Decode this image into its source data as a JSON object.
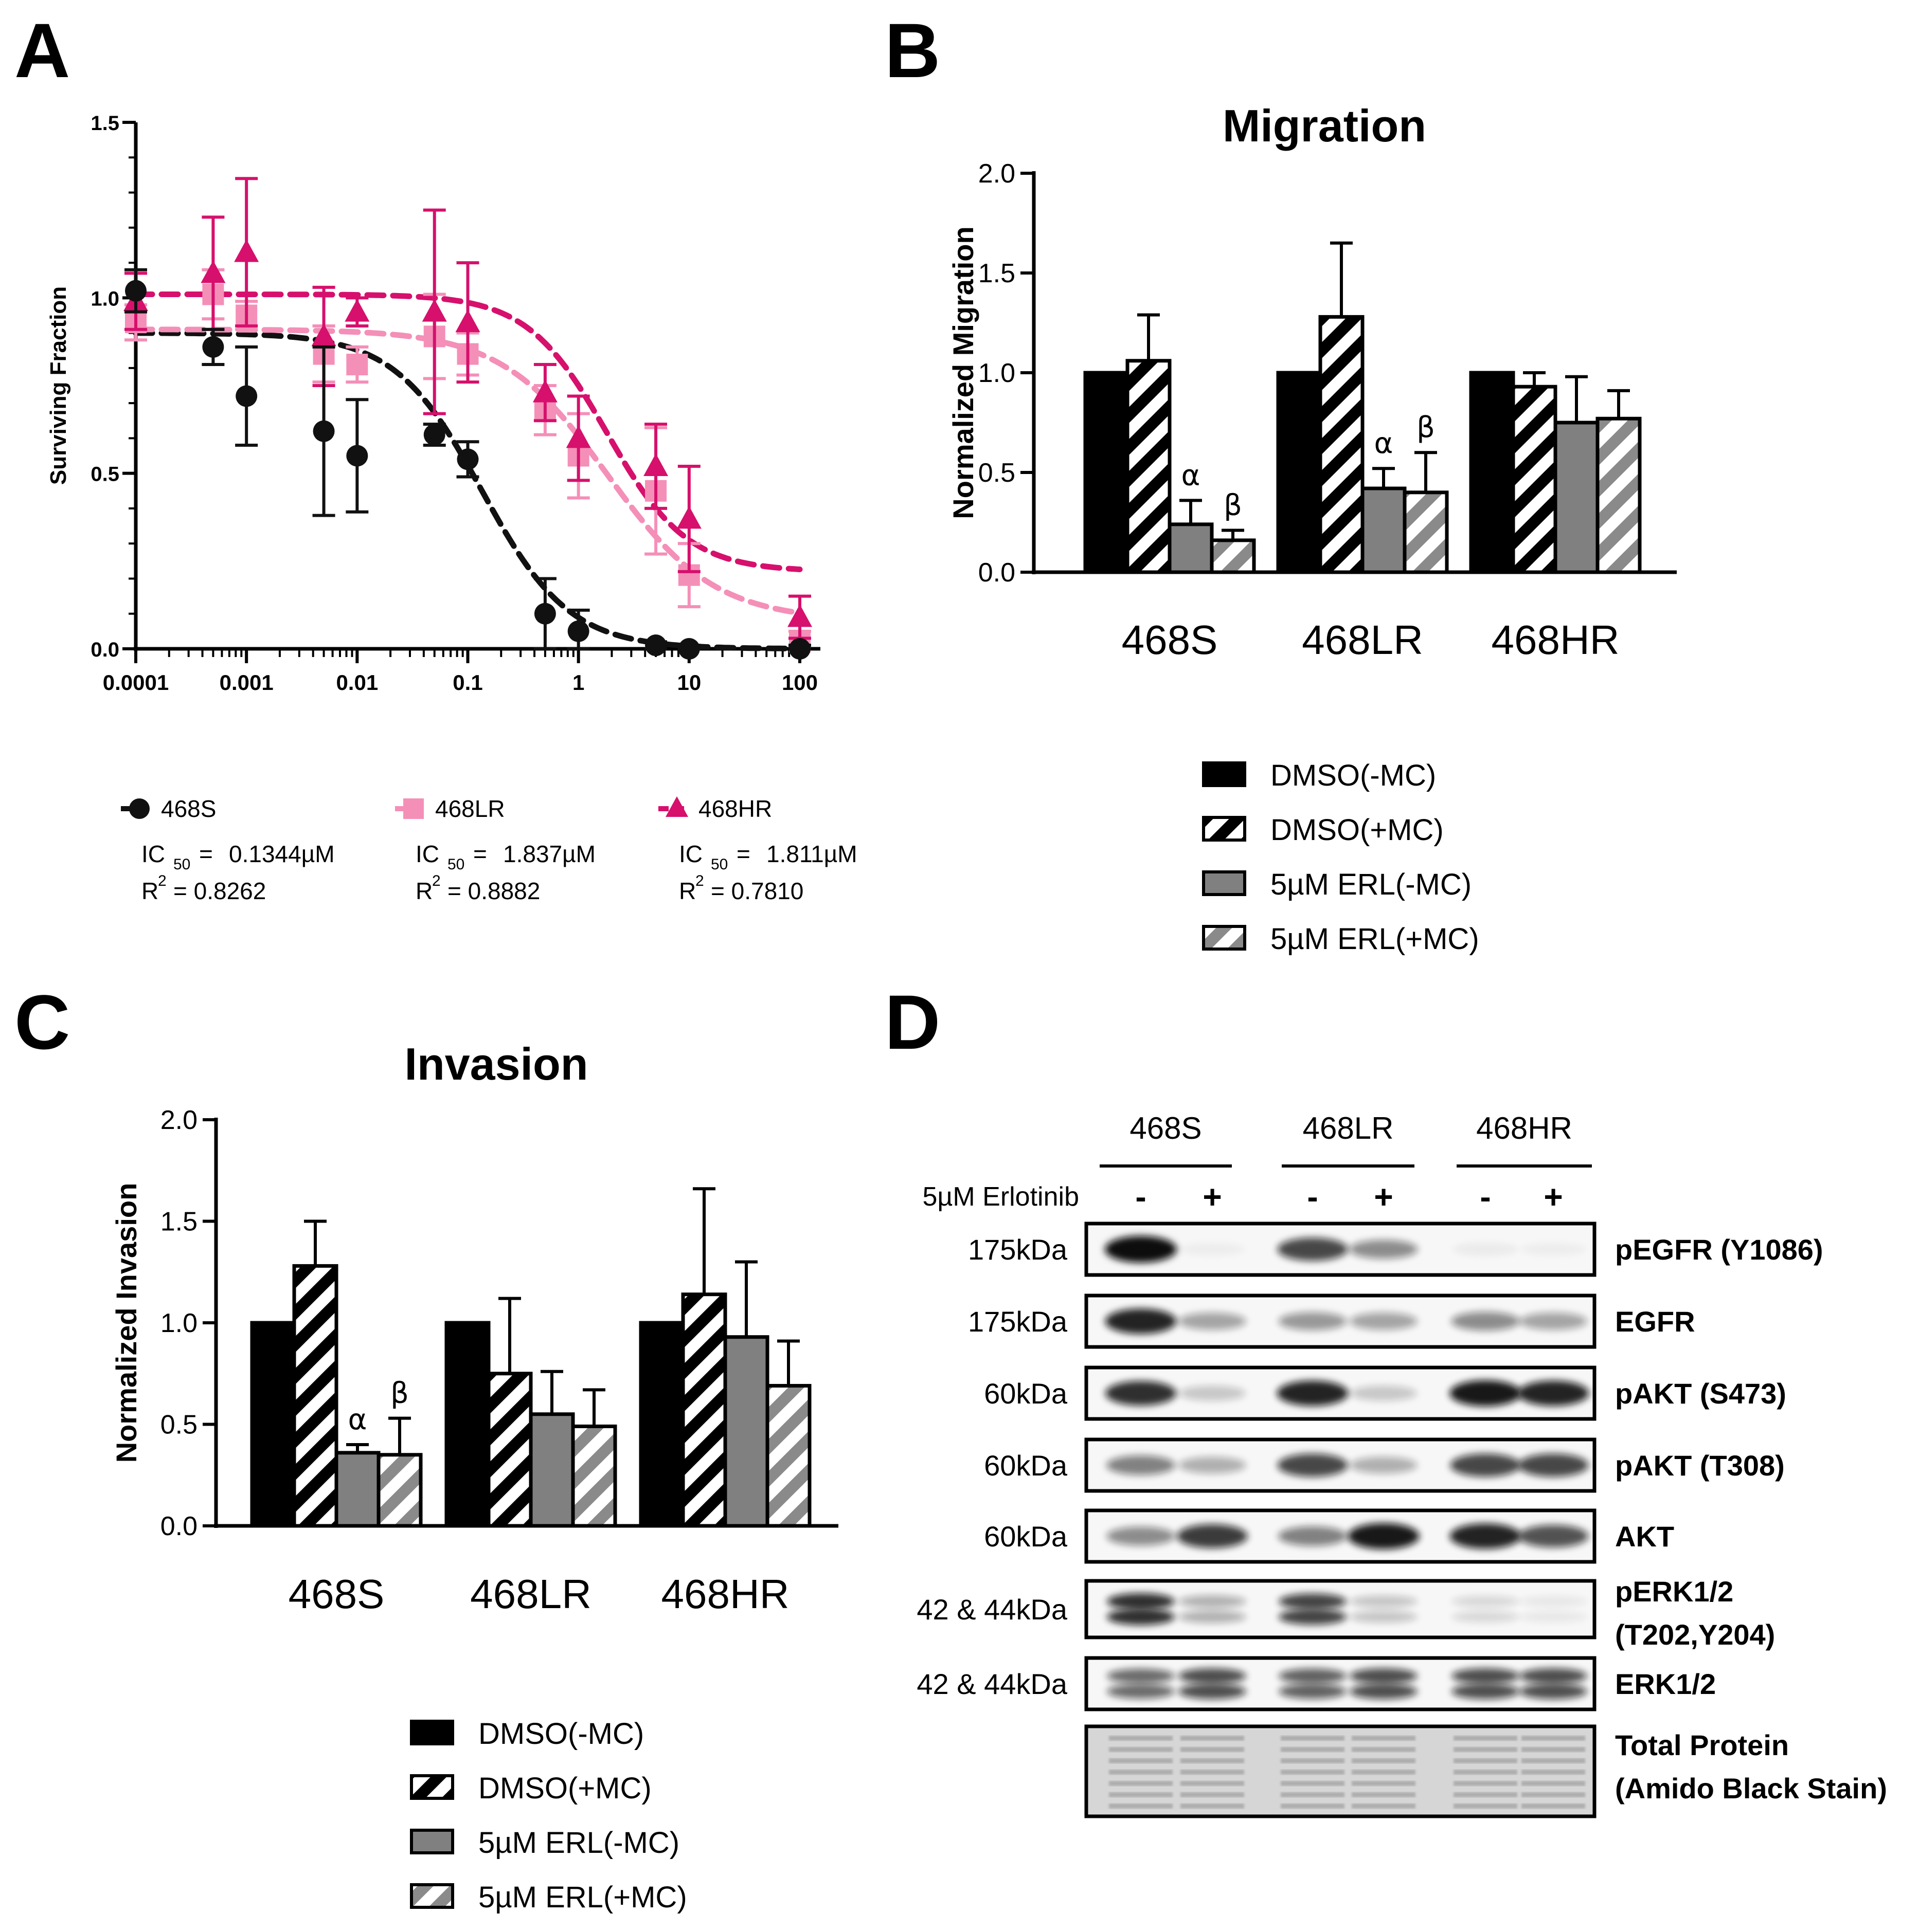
{
  "panels": {
    "A": "A",
    "B": "B",
    "C": "C",
    "D": "D"
  },
  "chart_data": [
    {
      "id": "A",
      "type": "scatter",
      "title": "",
      "xlabel": "",
      "ylabel": "Surviving Fraction",
      "xscale": "log",
      "xlim": [
        0.0001,
        100
      ],
      "ylim": [
        0,
        1.5
      ],
      "xticks": [
        "0.0001",
        "0.001",
        "0.01",
        "0.1",
        "1",
        "10",
        "100"
      ],
      "yticks": [
        "0.0",
        "0.5",
        "1.0",
        "1.5"
      ],
      "x": [
        0.0001,
        0.0005,
        0.001,
        0.005,
        0.01,
        0.05,
        0.1,
        0.5,
        1,
        5,
        10,
        100
      ],
      "series": [
        {
          "name": "468S",
          "color": "#111111",
          "marker": "circle",
          "values": [
            1.02,
            0.86,
            0.72,
            0.62,
            0.55,
            0.61,
            0.54,
            0.1,
            0.05,
            0.01,
            0.0,
            0.0
          ],
          "err": [
            0.06,
            0.05,
            0.14,
            0.24,
            0.16,
            0.03,
            0.05,
            0.1,
            0.06,
            0.01,
            0.01,
            0.01
          ],
          "fit": {
            "top": 0.9,
            "bottom": 0.0,
            "ic50": 0.1344,
            "hill": 1.1
          },
          "ic50_label": "0.1344µM",
          "r2_label": "= 0.8262"
        },
        {
          "name": "468LR",
          "color": "#F48FB8",
          "marker": "square",
          "values": [
            0.93,
            1.01,
            0.95,
            0.84,
            0.81,
            0.89,
            0.84,
            0.68,
            0.55,
            0.45,
            0.21,
            0.02
          ],
          "err": [
            0.05,
            0.07,
            0.04,
            0.08,
            0.05,
            0.12,
            0.06,
            0.07,
            0.12,
            0.18,
            0.09,
            0.03
          ],
          "fit": {
            "top": 0.91,
            "bottom": 0.08,
            "ic50": 1.837,
            "hill": 0.9
          },
          "ic50_label": "1.837µM",
          "r2_label": "= 0.8882"
        },
        {
          "name": "468HR",
          "color": "#D6106C",
          "marker": "triangle",
          "values": [
            0.99,
            1.07,
            1.13,
            0.89,
            0.96,
            0.96,
            0.93,
            0.73,
            0.6,
            0.52,
            0.37,
            0.09
          ],
          "err": [
            0.08,
            0.16,
            0.21,
            0.14,
            0.04,
            0.29,
            0.17,
            0.08,
            0.12,
            0.12,
            0.15,
            0.06
          ],
          "fit": {
            "top": 1.01,
            "bottom": 0.22,
            "ic50": 1.811,
            "hill": 1.2
          },
          "ic50_label": "1.811µM",
          "r2_label": "= 0.7810"
        }
      ],
      "ic50_prefix": "IC",
      "ic50_sub": "50",
      "ic50_eq": "=",
      "r2_prefix": "R",
      "r2_sup": "2"
    },
    {
      "id": "B",
      "type": "bar",
      "title": "Migration",
      "xlabel": "",
      "ylabel": "Normalized Migration",
      "ylim": [
        0,
        2.0
      ],
      "yticks": [
        "0.0",
        "0.5",
        "1.0",
        "1.5",
        "2.0"
      ],
      "categories": [
        "468S",
        "468LR",
        "468HR"
      ],
      "series": [
        {
          "name": "DMSO(-MC)",
          "fill": "black",
          "values": [
            1.0,
            1.0,
            1.0
          ],
          "err": [
            0,
            0,
            0
          ]
        },
        {
          "name": "DMSO(+MC)",
          "fill": "black-stripe",
          "values": [
            1.06,
            1.28,
            0.93
          ],
          "err": [
            0.23,
            0.37,
            0.07
          ]
        },
        {
          "name": "5µM ERL(-MC)",
          "fill": "gray",
          "values": [
            0.24,
            0.42,
            0.75
          ],
          "err": [
            0.12,
            0.1,
            0.23
          ]
        },
        {
          "name": "5µM ERL(+MC)",
          "fill": "gray-stripe",
          "values": [
            0.16,
            0.4,
            0.77
          ],
          "err": [
            0.05,
            0.2,
            0.14
          ]
        }
      ],
      "annotations": [
        {
          "text": "α",
          "category": 0,
          "series": 2
        },
        {
          "text": "β",
          "category": 0,
          "series": 3
        },
        {
          "text": "α",
          "category": 1,
          "series": 2
        },
        {
          "text": "β",
          "category": 1,
          "series": 3
        }
      ]
    },
    {
      "id": "C",
      "type": "bar",
      "title": "Invasion",
      "xlabel": "",
      "ylabel": "Normalized Invasion",
      "ylim": [
        0,
        2.0
      ],
      "yticks": [
        "0.0",
        "0.5",
        "1.0",
        "1.5",
        "2.0"
      ],
      "categories": [
        "468S",
        "468LR",
        "468HR"
      ],
      "series": [
        {
          "name": "DMSO(-MC)",
          "fill": "black",
          "values": [
            1.0,
            1.0,
            1.0
          ],
          "err": [
            0,
            0,
            0
          ]
        },
        {
          "name": "DMSO(+MC)",
          "fill": "black-stripe",
          "values": [
            1.28,
            0.75,
            1.14
          ],
          "err": [
            0.22,
            0.37,
            0.52
          ]
        },
        {
          "name": "5µM ERL(-MC)",
          "fill": "gray",
          "values": [
            0.36,
            0.55,
            0.93
          ],
          "err": [
            0.04,
            0.21,
            0.37
          ]
        },
        {
          "name": "5µM ERL(+MC)",
          "fill": "gray-stripe",
          "values": [
            0.35,
            0.49,
            0.69
          ],
          "err": [
            0.18,
            0.18,
            0.22
          ]
        }
      ],
      "annotations": [
        {
          "text": "α",
          "category": 0,
          "series": 2
        },
        {
          "text": "β",
          "category": 0,
          "series": 3
        }
      ]
    }
  ],
  "western_blot": {
    "cell_lines": [
      "468S",
      "468LR",
      "468HR"
    ],
    "treatment_label": "5µM Erlotinib",
    "treatment_signs": [
      "-",
      "+",
      "-",
      "+",
      "-",
      "+"
    ],
    "rows": [
      {
        "mw": "175kDa",
        "label": [
          "pEGFR (Y1086)"
        ],
        "bands": [
          1.0,
          0.04,
          0.75,
          0.45,
          0.05,
          0.04
        ]
      },
      {
        "mw": "175kDa",
        "label": [
          "EGFR"
        ],
        "bands": [
          0.9,
          0.35,
          0.4,
          0.35,
          0.45,
          0.35
        ]
      },
      {
        "mw": "60kDa",
        "label": [
          "pAKT (S473)"
        ],
        "bands": [
          0.85,
          0.2,
          0.9,
          0.2,
          0.95,
          0.9
        ]
      },
      {
        "mw": "60kDa",
        "label": [
          "pAKT (T308)"
        ],
        "bands": [
          0.5,
          0.3,
          0.75,
          0.3,
          0.75,
          0.75
        ]
      },
      {
        "mw": "60kDa",
        "label": [
          "AKT"
        ],
        "bands": [
          0.45,
          0.8,
          0.5,
          0.95,
          0.9,
          0.7
        ]
      },
      {
        "mw": "42 & 44kDa",
        "label": [
          "pERK1/2",
          "(T202,Y204)"
        ],
        "bands": [
          1.0,
          0.35,
          0.9,
          0.25,
          0.15,
          0.08
        ]
      },
      {
        "mw": "42 & 44kDa",
        "label": [
          "ERK1/2"
        ],
        "bands": [
          0.7,
          0.85,
          0.75,
          0.85,
          0.85,
          0.85
        ]
      },
      {
        "mw": "",
        "label": [
          "Total Protein",
          "(Amido Black Stain)"
        ],
        "bands": [
          0.35,
          0.35,
          0.35,
          0.35,
          0.35,
          0.35
        ]
      }
    ]
  }
}
